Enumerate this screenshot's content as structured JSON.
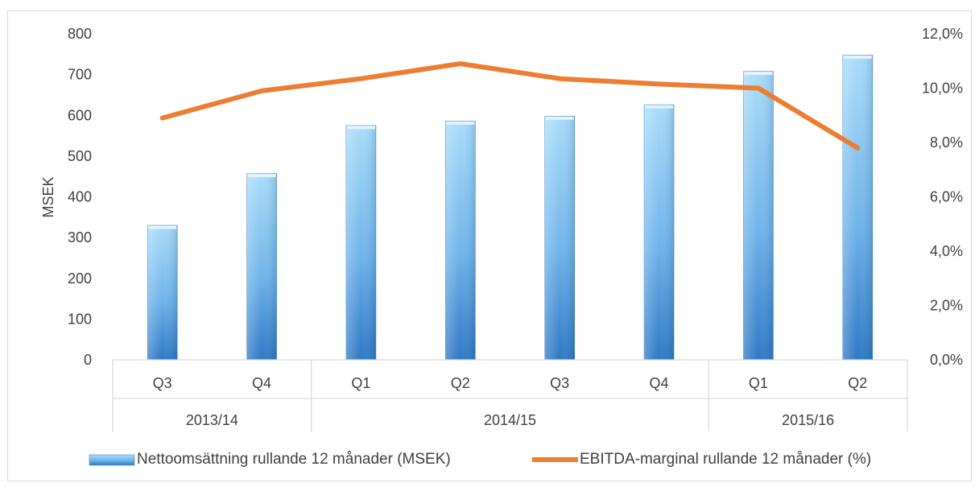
{
  "chart_data": {
    "type": "bar",
    "title": "",
    "categories": [
      "Q3",
      "Q4",
      "Q1",
      "Q2",
      "Q3",
      "Q4",
      "Q1",
      "Q2"
    ],
    "groups": [
      {
        "label": "2013/14",
        "span": 2
      },
      {
        "label": "2014/15",
        "span": 4
      },
      {
        "label": "2015/16",
        "span": 2
      }
    ],
    "series": [
      {
        "name": "Nettoomsättning rullande 12 månader (MSEK)",
        "type": "bar",
        "axis": "left",
        "color": "#5b9bd5",
        "values": [
          330,
          457,
          575,
          586,
          598,
          626,
          708,
          748
        ]
      },
      {
        "name": "EBITDA-marginal rullande 12 månader (%)",
        "type": "line",
        "axis": "right",
        "color": "#ed7d31",
        "values": [
          8.9,
          9.9,
          10.35,
          10.9,
          10.35,
          10.15,
          10.0,
          7.8
        ]
      }
    ],
    "ylabel": "MSEK",
    "ylim": [
      0,
      800
    ],
    "yticks": [
      "0",
      "100",
      "200",
      "300",
      "400",
      "500",
      "600",
      "700",
      "800"
    ],
    "y2lim": [
      0,
      12
    ],
    "y2ticks": [
      "0,0%",
      "2,0%",
      "4,0%",
      "6,0%",
      "8,0%",
      "10,0%",
      "12,0%"
    ],
    "grid": false,
    "legend_position": "bottom"
  }
}
